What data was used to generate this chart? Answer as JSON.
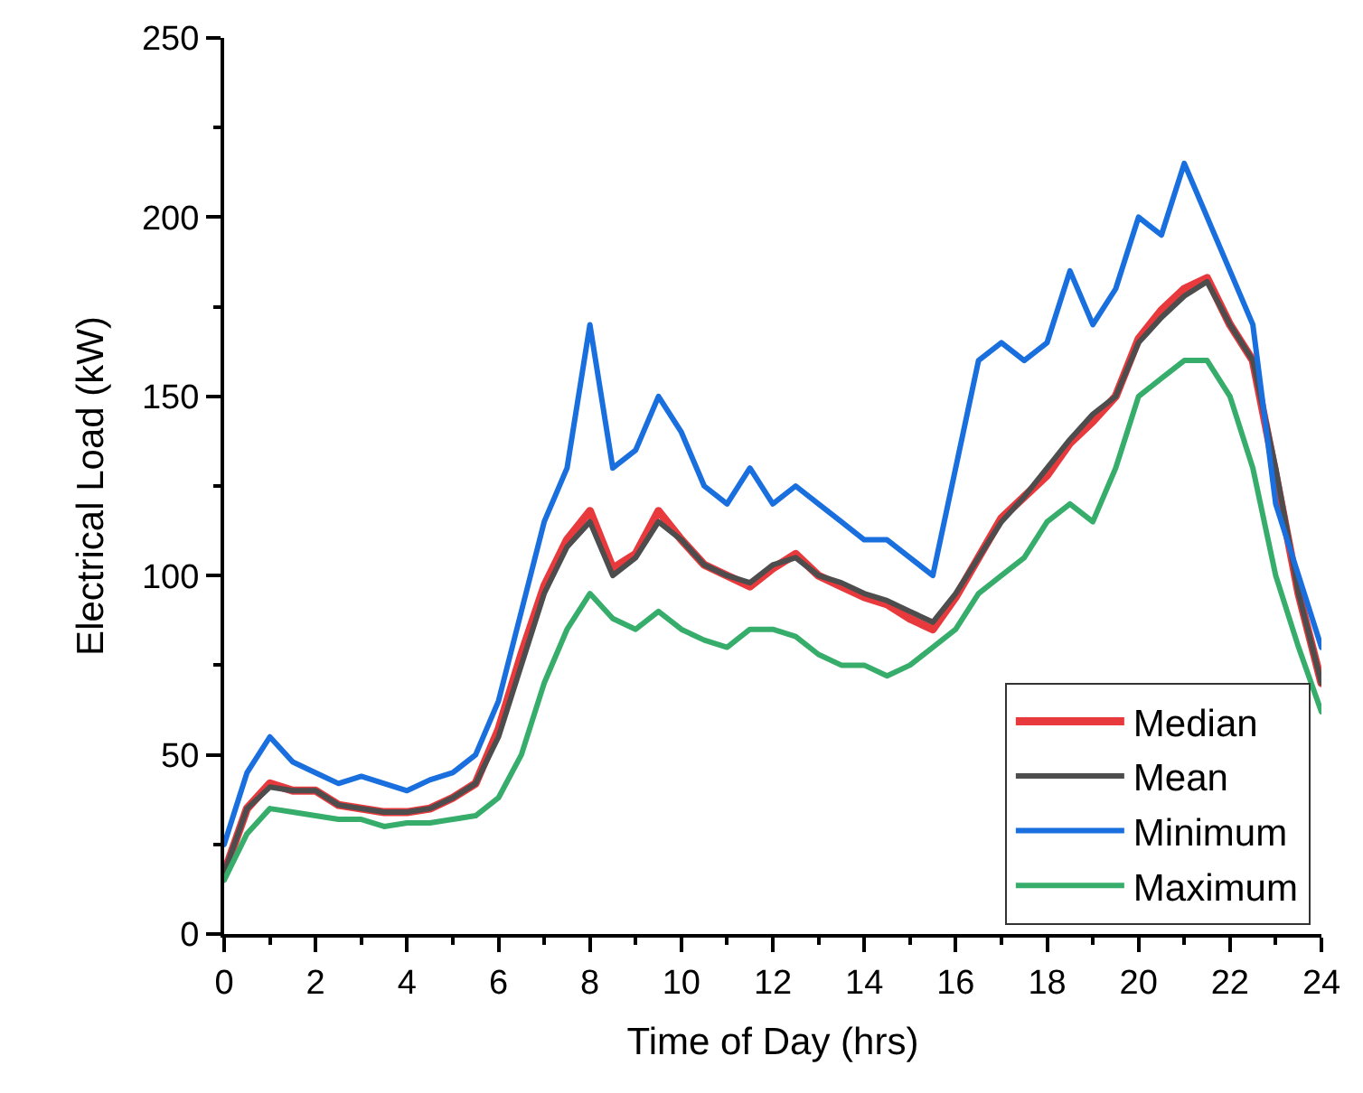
{
  "chart_data": {
    "type": "line",
    "xlabel": "Time of Day (hrs)",
    "ylabel": "Electrical Load (kW)",
    "x": [
      0,
      0.5,
      1,
      1.5,
      2,
      2.5,
      3,
      3.5,
      4,
      4.5,
      5,
      5.5,
      6,
      6.5,
      7,
      7.5,
      8,
      8.5,
      9,
      9.5,
      10,
      10.5,
      11,
      11.5,
      12,
      12.5,
      13,
      13.5,
      14,
      14.5,
      15,
      15.5,
      16,
      16.5,
      17,
      17.5,
      18,
      18.5,
      19,
      19.5,
      20,
      20.5,
      21,
      21.5,
      22,
      22.5,
      23,
      23.5,
      24
    ],
    "series": [
      {
        "name": "Median",
        "color": "#e8393d",
        "values": [
          17,
          35,
          42,
          40,
          40,
          36,
          35,
          34,
          34,
          35,
          38,
          42,
          57,
          78,
          97,
          110,
          118,
          102,
          106,
          118,
          110,
          103,
          100,
          97,
          102,
          106,
          100,
          97,
          94,
          92,
          88,
          85,
          94,
          105,
          116,
          122,
          128,
          137,
          143,
          150,
          166,
          174,
          180,
          183,
          170,
          160,
          128,
          95,
          70
        ]
      },
      {
        "name": "Mean",
        "color": "#4d4d4d",
        "values": [
          17,
          35,
          41,
          40,
          40,
          36,
          35,
          34,
          34,
          35,
          38,
          42,
          55,
          75,
          95,
          108,
          115,
          100,
          105,
          115,
          110,
          103,
          100,
          98,
          103,
          105,
          100,
          98,
          95,
          93,
          90,
          87,
          95,
          105,
          115,
          122,
          130,
          138,
          145,
          150,
          165,
          172,
          178,
          182,
          170,
          160,
          130,
          95,
          70
        ]
      },
      {
        "name": "Minimum",
        "color": "#1a6fdf",
        "values": [
          25,
          45,
          55,
          48,
          45,
          42,
          44,
          42,
          40,
          43,
          45,
          50,
          65,
          90,
          115,
          130,
          170,
          130,
          135,
          150,
          140,
          125,
          120,
          130,
          120,
          125,
          120,
          115,
          110,
          110,
          105,
          100,
          130,
          160,
          165,
          160,
          165,
          185,
          170,
          180,
          200,
          195,
          215,
          200,
          185,
          170,
          120,
          100,
          80
        ]
      },
      {
        "name": "Maximum",
        "color": "#37ad6b",
        "values": [
          15,
          28,
          35,
          34,
          33,
          32,
          32,
          30,
          31,
          31,
          32,
          33,
          38,
          50,
          70,
          85,
          95,
          88,
          85,
          90,
          85,
          82,
          80,
          85,
          85,
          83,
          78,
          75,
          75,
          72,
          75,
          80,
          85,
          95,
          100,
          105,
          115,
          120,
          115,
          130,
          150,
          155,
          160,
          160,
          150,
          130,
          100,
          80,
          62
        ]
      }
    ],
    "xlim": [
      0,
      24
    ],
    "xticks": [
      0,
      2,
      4,
      6,
      8,
      10,
      12,
      14,
      16,
      18,
      20,
      22,
      24
    ],
    "ylim": [
      0,
      250
    ],
    "yticks": [
      0,
      50,
      100,
      150,
      200,
      250
    ],
    "legend": "bottom right",
    "marker": "none",
    "line_style": "solid"
  }
}
